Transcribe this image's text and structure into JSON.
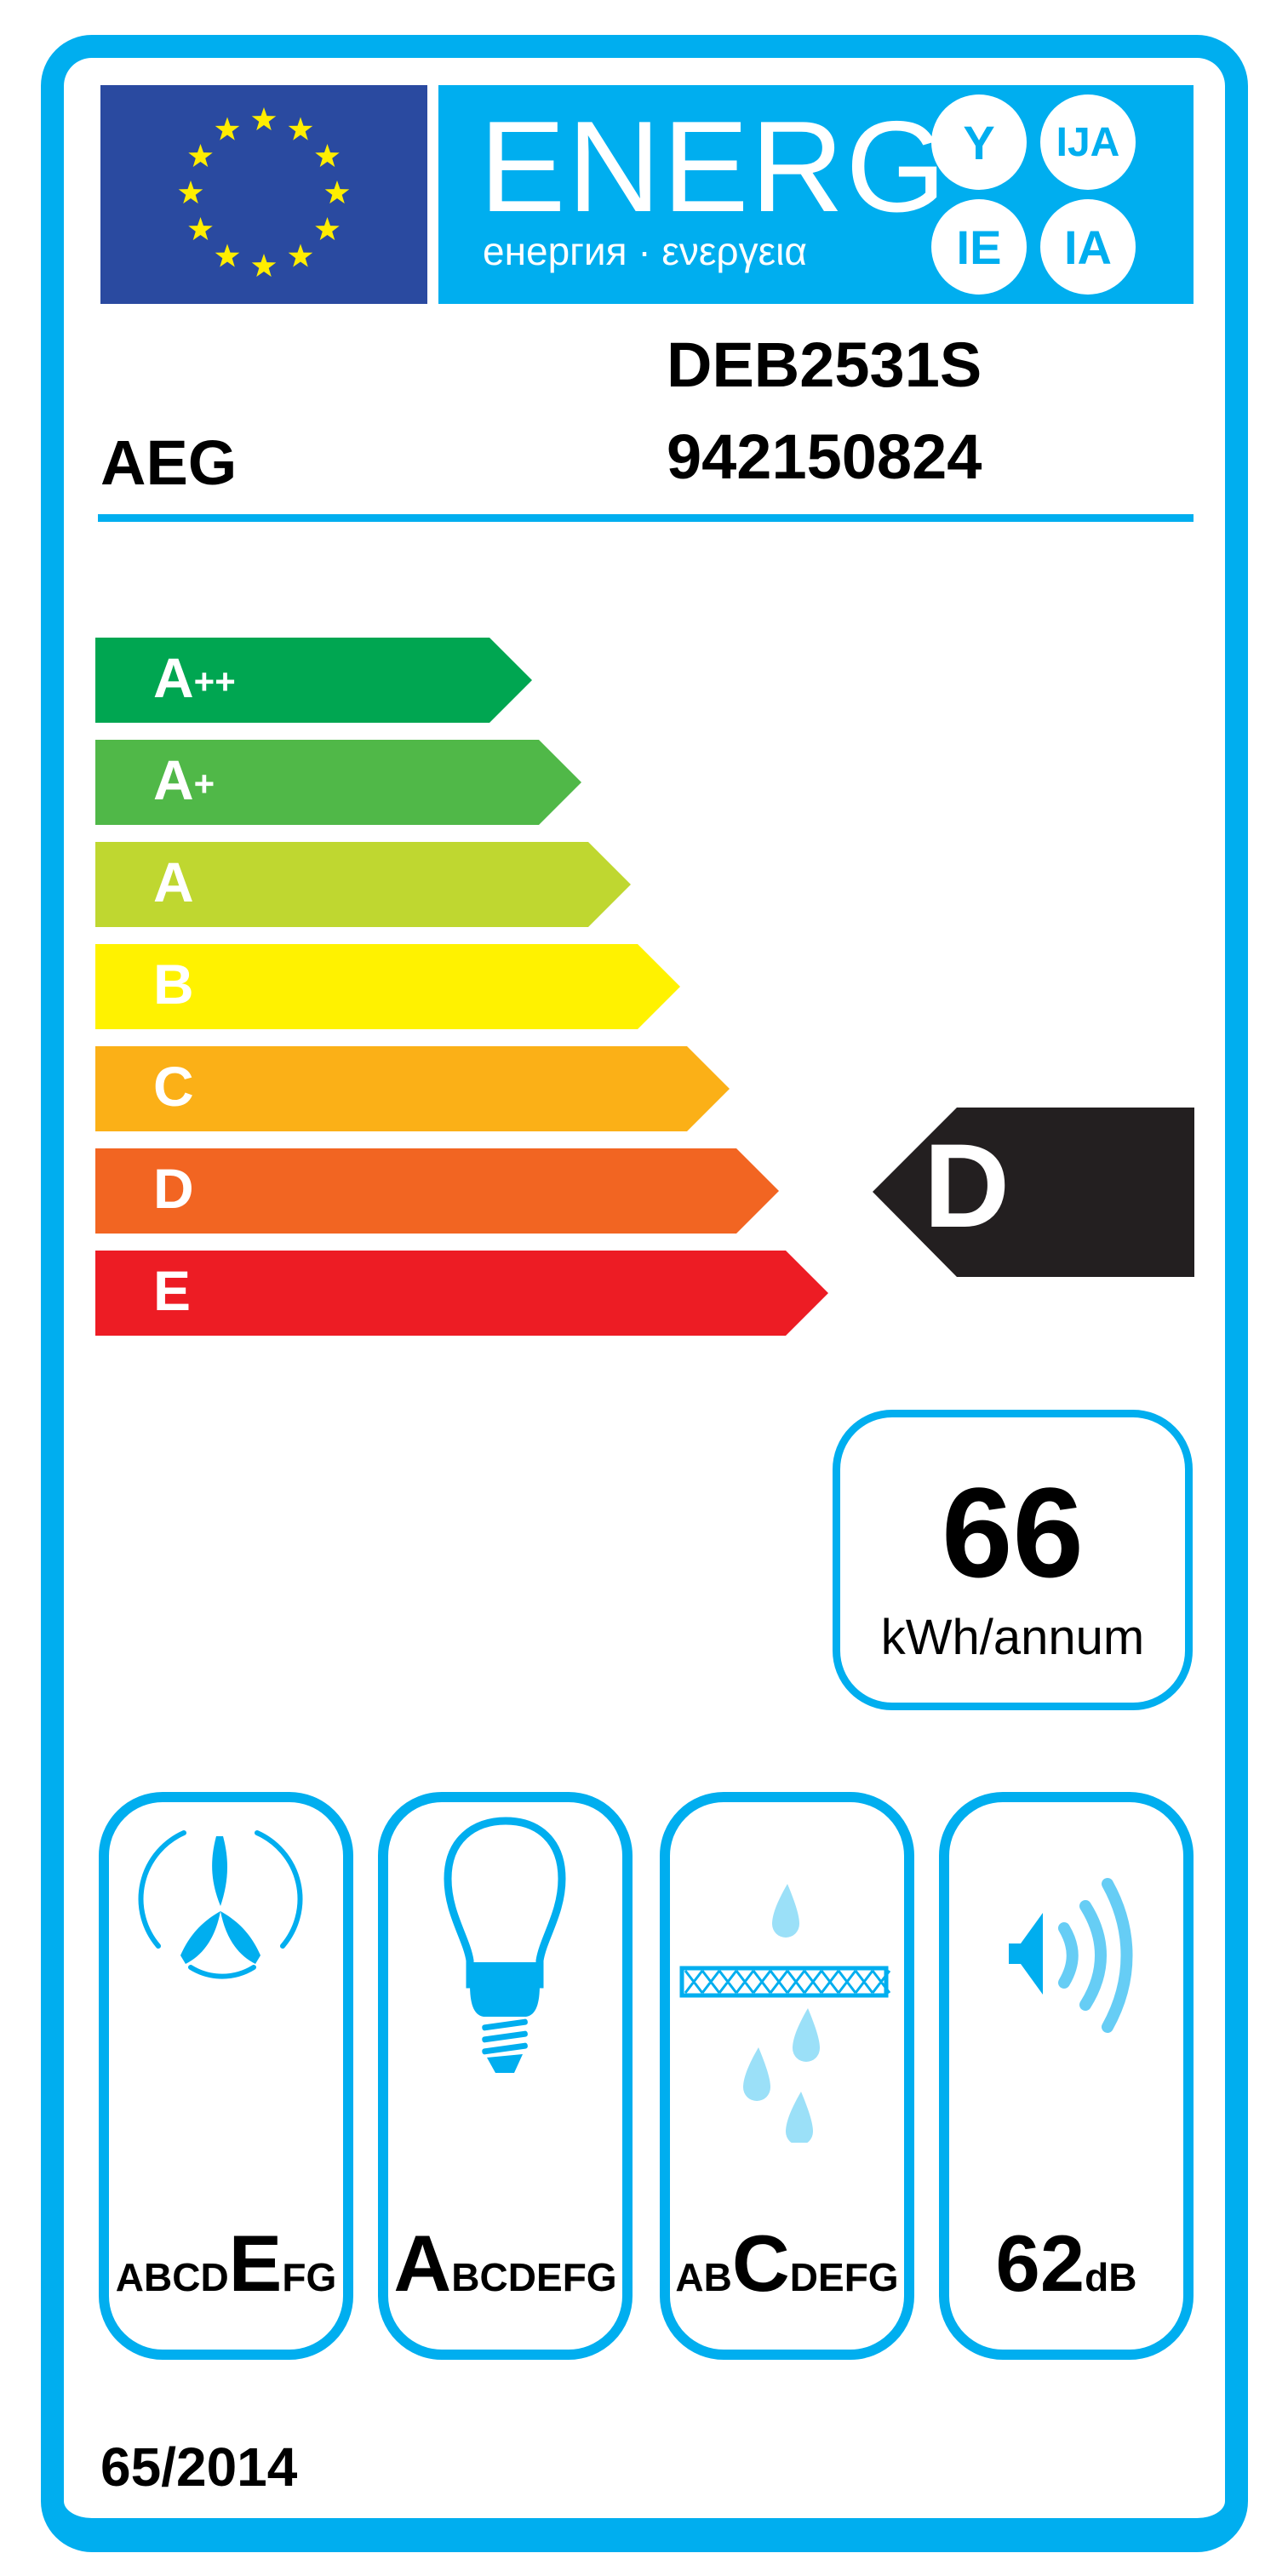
{
  "header": {
    "title": "ENERG",
    "subtitle": "енергия · ενεργεια",
    "language_badges": [
      "Y",
      "IJA",
      "IE",
      "IA"
    ],
    "flag": "eu-flag-stars",
    "colors": {
      "accent": "#00aeef",
      "flag_blue": "#2a4aa0",
      "stars": "#ffed00"
    }
  },
  "supplier": {
    "brand": "AEG",
    "model": "DEB2531S",
    "identifier": "942150824"
  },
  "energy_classes": [
    {
      "base": "A",
      "sup": "++",
      "color": "#00a651"
    },
    {
      "base": "A",
      "sup": "+",
      "color": "#50b848"
    },
    {
      "base": "A",
      "sup": "",
      "color": "#bfd730"
    },
    {
      "base": "B",
      "sup": "",
      "color": "#fff200"
    },
    {
      "base": "C",
      "sup": "",
      "color": "#fbb017"
    },
    {
      "base": "D",
      "sup": "",
      "color": "#f26522"
    },
    {
      "base": "E",
      "sup": "",
      "color": "#ed1c24"
    }
  ],
  "rating": {
    "class": "D",
    "color": "#231f20"
  },
  "consumption": {
    "value": "66",
    "unit": "kWh/annum"
  },
  "indicators": [
    {
      "icon": "fan-icon",
      "scale": "ABCDEFG",
      "highlight": "E"
    },
    {
      "icon": "light-bulb-icon",
      "scale": "ABCDEFG",
      "highlight": "A"
    },
    {
      "icon": "grease-filter-icon",
      "scale": "ABCDEFG",
      "highlight": "C"
    },
    {
      "icon": "speaker-icon",
      "value": "62",
      "unit": "dB"
    }
  ],
  "regulation": "65/2014"
}
